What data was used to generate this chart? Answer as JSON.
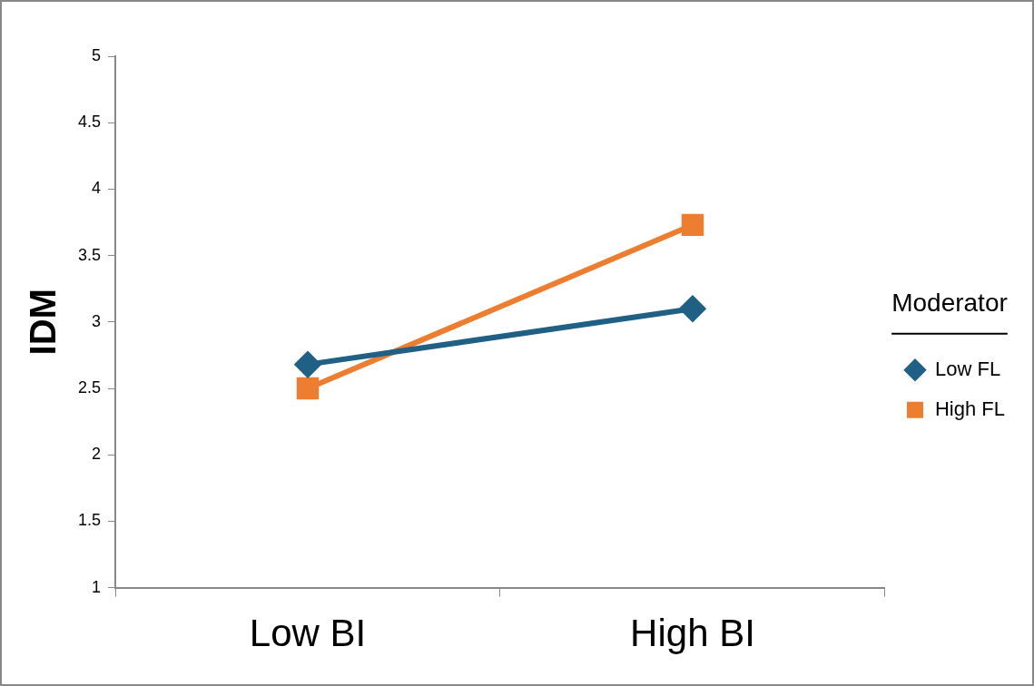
{
  "chart_data": {
    "type": "line",
    "ylabel": "IDM",
    "legend_title": "Moderator",
    "categories": [
      "Low BI",
      "High BI"
    ],
    "series": [
      {
        "name": "Low FL",
        "color": "#1f6084",
        "values": [
          2.68,
          3.1
        ],
        "marker": "diamond"
      },
      {
        "name": "High FL",
        "color": "#ed7d31",
        "values": [
          2.5,
          3.73
        ],
        "marker": "square"
      }
    ],
    "ylim": [
      1,
      5
    ],
    "yticks": [
      1,
      1.5,
      2,
      2.5,
      3,
      3.5,
      4,
      4.5,
      5
    ],
    "grid": false,
    "legend": "right",
    "line_style": "solid"
  }
}
